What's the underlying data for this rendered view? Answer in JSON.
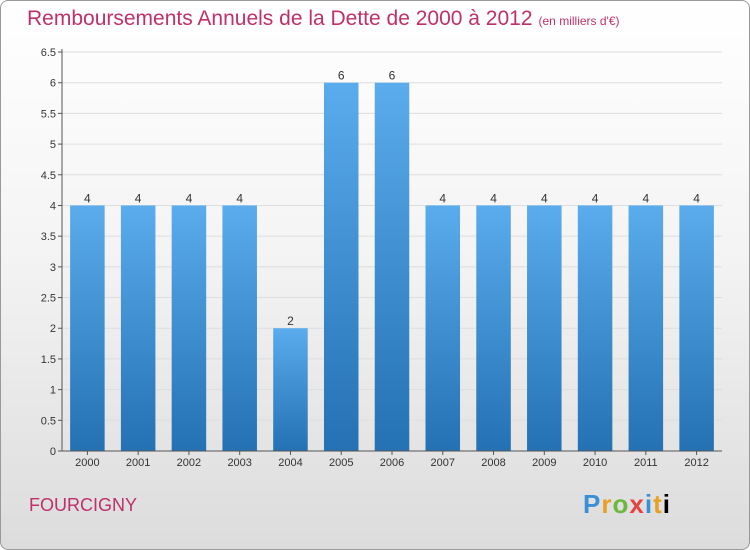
{
  "header": {
    "title": "Remboursements Annuels de la Dette de 2000 à 2012",
    "unit": "(en milliers d'€)"
  },
  "footer": {
    "city": "FOURCIGNY",
    "logo": [
      "P",
      "r",
      "o",
      "x",
      "i",
      "t",
      "i"
    ]
  },
  "colors": {
    "title": "#c0306a",
    "bar_top": "#5aacec",
    "bar_bottom": "#2471b3",
    "grid": "#dddddd"
  },
  "chart_data": {
    "type": "bar",
    "categories": [
      "2000",
      "2001",
      "2002",
      "2003",
      "2004",
      "2005",
      "2006",
      "2007",
      "2008",
      "2009",
      "2010",
      "2011",
      "2012"
    ],
    "values": [
      4,
      4,
      4,
      4,
      2,
      6,
      6,
      4,
      4,
      4,
      4,
      4,
      4
    ],
    "data_labels": [
      "4",
      "4",
      "4",
      "4",
      "2",
      "6",
      "6",
      "4",
      "4",
      "4",
      "4",
      "4",
      "4"
    ],
    "title": "Remboursements Annuels de la Dette de 2000 à 2012",
    "ylim": [
      0,
      6.5
    ],
    "yticks": [
      0,
      0.5,
      1,
      1.5,
      2,
      2.5,
      3,
      3.5,
      4,
      4.5,
      5,
      5.5,
      6,
      6.5
    ],
    "ytick_labels": [
      "0",
      "0.5",
      "1",
      "1.5",
      "2",
      "2.5",
      "3",
      "3.5",
      "4",
      "4.5",
      "5",
      "5.5",
      "6",
      "6.5"
    ],
    "grid": true
  }
}
